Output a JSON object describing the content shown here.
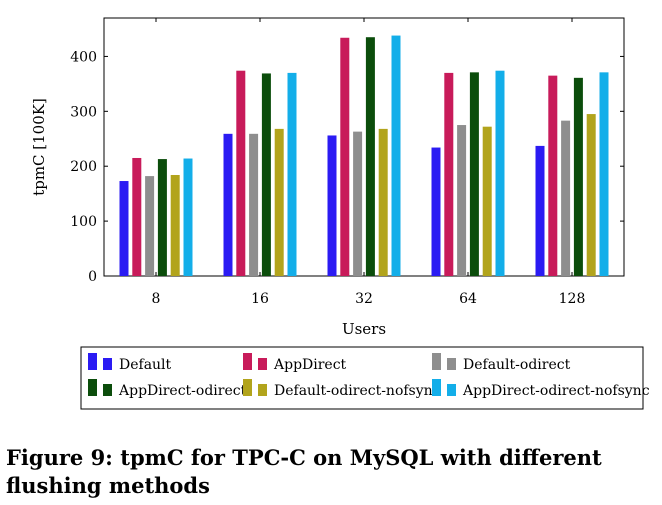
{
  "chart_data": {
    "type": "bar",
    "xlabel": "Users",
    "ylabel": "tpmC [100K]",
    "categories": [
      "8",
      "16",
      "32",
      "64",
      "128"
    ],
    "yticks": [
      "0",
      "100",
      "200",
      "300",
      "400"
    ],
    "ylim": [
      0,
      470
    ],
    "grid": false,
    "legend_position": "bottom",
    "series": [
      {
        "name": "Default",
        "color": "#2b1bf3",
        "values": [
          173,
          259,
          256,
          234,
          237
        ]
      },
      {
        "name": "AppDirect",
        "color": "#c81b5a",
        "values": [
          215,
          374,
          434,
          370,
          365
        ]
      },
      {
        "name": "Default-odirect",
        "color": "#8e8e8e",
        "values": [
          182,
          259,
          263,
          275,
          283
        ]
      },
      {
        "name": "AppDirect-odirect",
        "color": "#0b4d0b",
        "values": [
          213,
          369,
          435,
          371,
          361
        ]
      },
      {
        "name": "Default-odirect-nofsync",
        "color": "#b2a41c",
        "values": [
          184,
          268,
          268,
          272,
          295
        ]
      },
      {
        "name": "AppDirect-odirect-nofsync",
        "color": "#13aee9",
        "values": [
          214,
          370,
          438,
          374,
          371
        ]
      }
    ]
  },
  "caption": "Figure 9: tpmC for TPC-C on MySQL with different flushing methods"
}
